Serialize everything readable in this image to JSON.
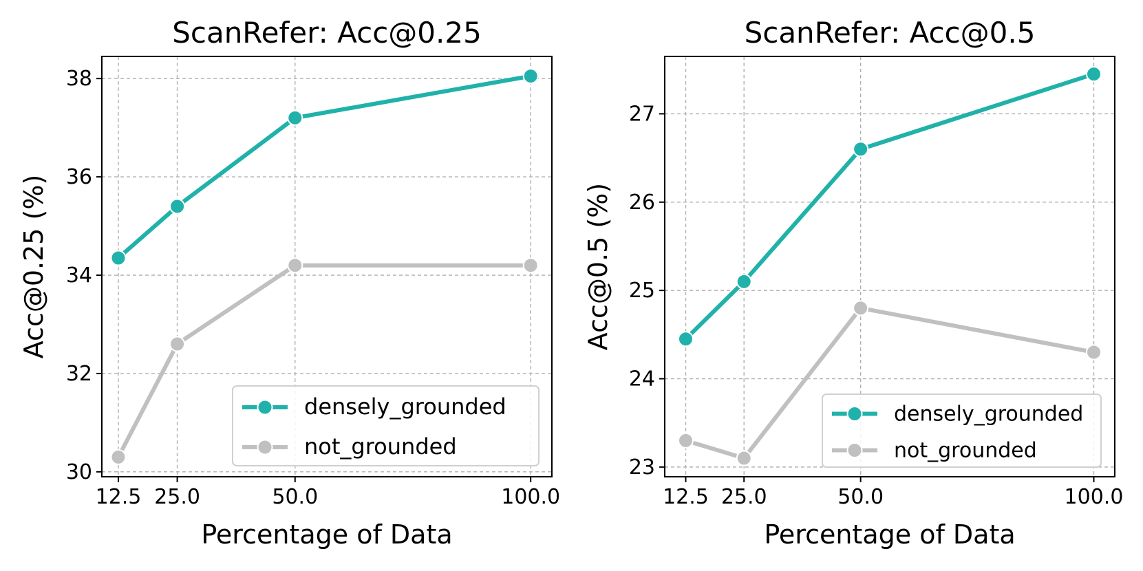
{
  "chart_data": [
    {
      "type": "line",
      "title": "ScanRefer: Acc@0.25",
      "xlabel": "Percentage of Data",
      "ylabel": "Acc@0.25 (%)",
      "x": [
        12.5,
        25.0,
        50.0,
        100.0
      ],
      "xticks": [
        "12.5",
        "25.0",
        "50.0",
        "100.0"
      ],
      "xlim": [
        9,
        104.5
      ],
      "yticks": [
        30,
        32,
        34,
        36,
        38
      ],
      "ylim": [
        29.9,
        38.45
      ],
      "grid": true,
      "legend_position": "lower-right",
      "series": [
        {
          "name": "densely_grounded",
          "values": [
            34.35,
            35.4,
            37.2,
            38.05
          ],
          "color": "#20b2aa"
        },
        {
          "name": "not_grounded",
          "values": [
            30.3,
            32.6,
            34.2,
            34.2
          ],
          "color": "#c0c0c0"
        }
      ]
    },
    {
      "type": "line",
      "title": "ScanRefer: Acc@0.5",
      "xlabel": "Percentage of Data",
      "ylabel": "Acc@0.5 (%)",
      "x": [
        12.5,
        25.0,
        50.0,
        100.0
      ],
      "xticks": [
        "12.5",
        "25.0",
        "50.0",
        "100.0"
      ],
      "xlim": [
        8,
        104.5
      ],
      "yticks": [
        23,
        24,
        25,
        26,
        27
      ],
      "ylim": [
        22.89,
        27.65
      ],
      "grid": true,
      "legend_position": "lower-right",
      "series": [
        {
          "name": "densely_grounded",
          "values": [
            24.45,
            25.1,
            26.6,
            27.45
          ],
          "color": "#20b2aa"
        },
        {
          "name": "not_grounded",
          "values": [
            23.3,
            23.1,
            24.8,
            24.3
          ],
          "color": "#c0c0c0"
        }
      ]
    }
  ]
}
